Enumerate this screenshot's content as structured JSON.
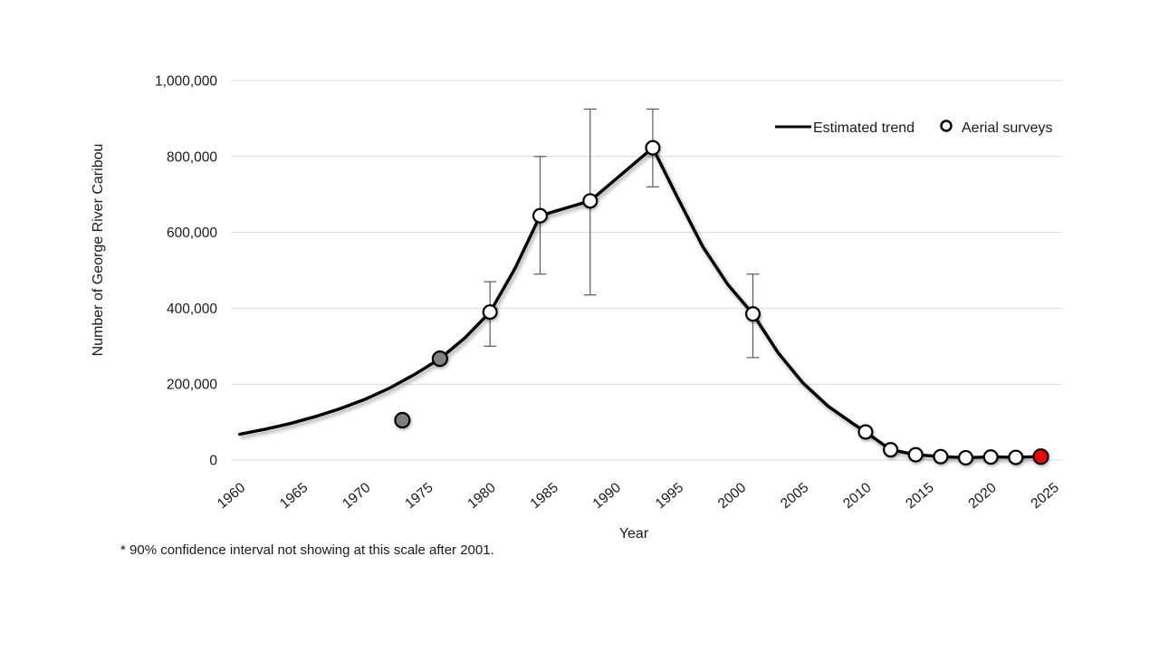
{
  "colors": {
    "background": "#ffffff",
    "trend_line": "#000000",
    "gridline": "#d9d9d9",
    "error_bar": "#595959",
    "point_stroke": "#000000",
    "text": "#1a1a1a",
    "fills": {
      "white": "#ffffff",
      "gray": "#808080",
      "red": "#ff0000"
    }
  },
  "chart_data": {
    "type": "line",
    "title": "",
    "xlabel": "Year",
    "ylabel": "Number of George River Caribou",
    "xlim": [
      1959.3,
      2025.7
    ],
    "ylim": [
      0,
      1000000
    ],
    "grid": "horizontal-only",
    "x_ticks": [
      1960,
      1965,
      1970,
      1975,
      1980,
      1985,
      1990,
      1995,
      2000,
      2005,
      2010,
      2015,
      2020,
      2025
    ],
    "y_ticks": [
      {
        "value": 0,
        "label": "0"
      },
      {
        "value": 200000,
        "label": "200,000"
      },
      {
        "value": 400000,
        "label": "400,000"
      },
      {
        "value": 600000,
        "label": "600,000"
      },
      {
        "value": 800000,
        "label": "800,000"
      },
      {
        "value": 1000000,
        "label": "1,000,000"
      }
    ],
    "legend": {
      "position": "top-right-inside",
      "entries": [
        {
          "label": "Estimated trend",
          "type": "line"
        },
        {
          "label": "Aerial surveys",
          "type": "open-circle"
        }
      ]
    },
    "series": [
      {
        "name": "Estimated trend",
        "type": "line",
        "points": [
          [
            1960,
            68000
          ],
          [
            1962,
            81000
          ],
          [
            1964,
            96000
          ],
          [
            1966,
            114000
          ],
          [
            1968,
            135000
          ],
          [
            1970,
            160000
          ],
          [
            1972,
            190000
          ],
          [
            1974,
            226000
          ],
          [
            1976,
            267000
          ],
          [
            1978,
            322000
          ],
          [
            1980,
            390000
          ],
          [
            1982,
            505000
          ],
          [
            1984,
            644000
          ],
          [
            1988,
            683000
          ],
          [
            1993,
            823000
          ],
          [
            1995,
            690000
          ],
          [
            1997,
            562000
          ],
          [
            1999,
            462000
          ],
          [
            2001,
            385000
          ],
          [
            2003,
            283000
          ],
          [
            2005,
            203000
          ],
          [
            2007,
            142000
          ],
          [
            2009,
            96000
          ],
          [
            2010,
            74000
          ],
          [
            2012,
            27000
          ],
          [
            2014,
            14000
          ],
          [
            2016,
            9000
          ],
          [
            2018,
            6000
          ],
          [
            2020,
            8000
          ],
          [
            2022,
            7000
          ],
          [
            2024,
            9000
          ]
        ]
      },
      {
        "name": "Aerial surveys",
        "type": "scatter",
        "points": [
          {
            "year": 1973,
            "count": 105000,
            "fill": "gray"
          },
          {
            "year": 1976,
            "count": 267000,
            "fill": "gray"
          },
          {
            "year": 1980,
            "count": 390000,
            "fill": "white",
            "ci_low": 300000,
            "ci_high": 470000
          },
          {
            "year": 1984,
            "count": 644000,
            "fill": "white",
            "ci_low": 490000,
            "ci_high": 800000
          },
          {
            "year": 1988,
            "count": 683000,
            "fill": "white",
            "ci_low": 435000,
            "ci_high": 925000
          },
          {
            "year": 1993,
            "count": 823000,
            "fill": "white",
            "ci_low": 720000,
            "ci_high": 925000
          },
          {
            "year": 2001,
            "count": 385000,
            "fill": "white",
            "ci_low": 270000,
            "ci_high": 490000
          },
          {
            "year": 2010,
            "count": 74000,
            "fill": "white"
          },
          {
            "year": 2012,
            "count": 27000,
            "fill": "white"
          },
          {
            "year": 2014,
            "count": 14000,
            "fill": "white"
          },
          {
            "year": 2016,
            "count": 9000,
            "fill": "white"
          },
          {
            "year": 2018,
            "count": 6000,
            "fill": "white"
          },
          {
            "year": 2020,
            "count": 8000,
            "fill": "white"
          },
          {
            "year": 2022,
            "count": 7000,
            "fill": "white"
          },
          {
            "year": 2024,
            "count": 9000,
            "fill": "red"
          }
        ]
      }
    ],
    "footnote": "* 90% confidence interval not showing at this scale after 2001."
  }
}
